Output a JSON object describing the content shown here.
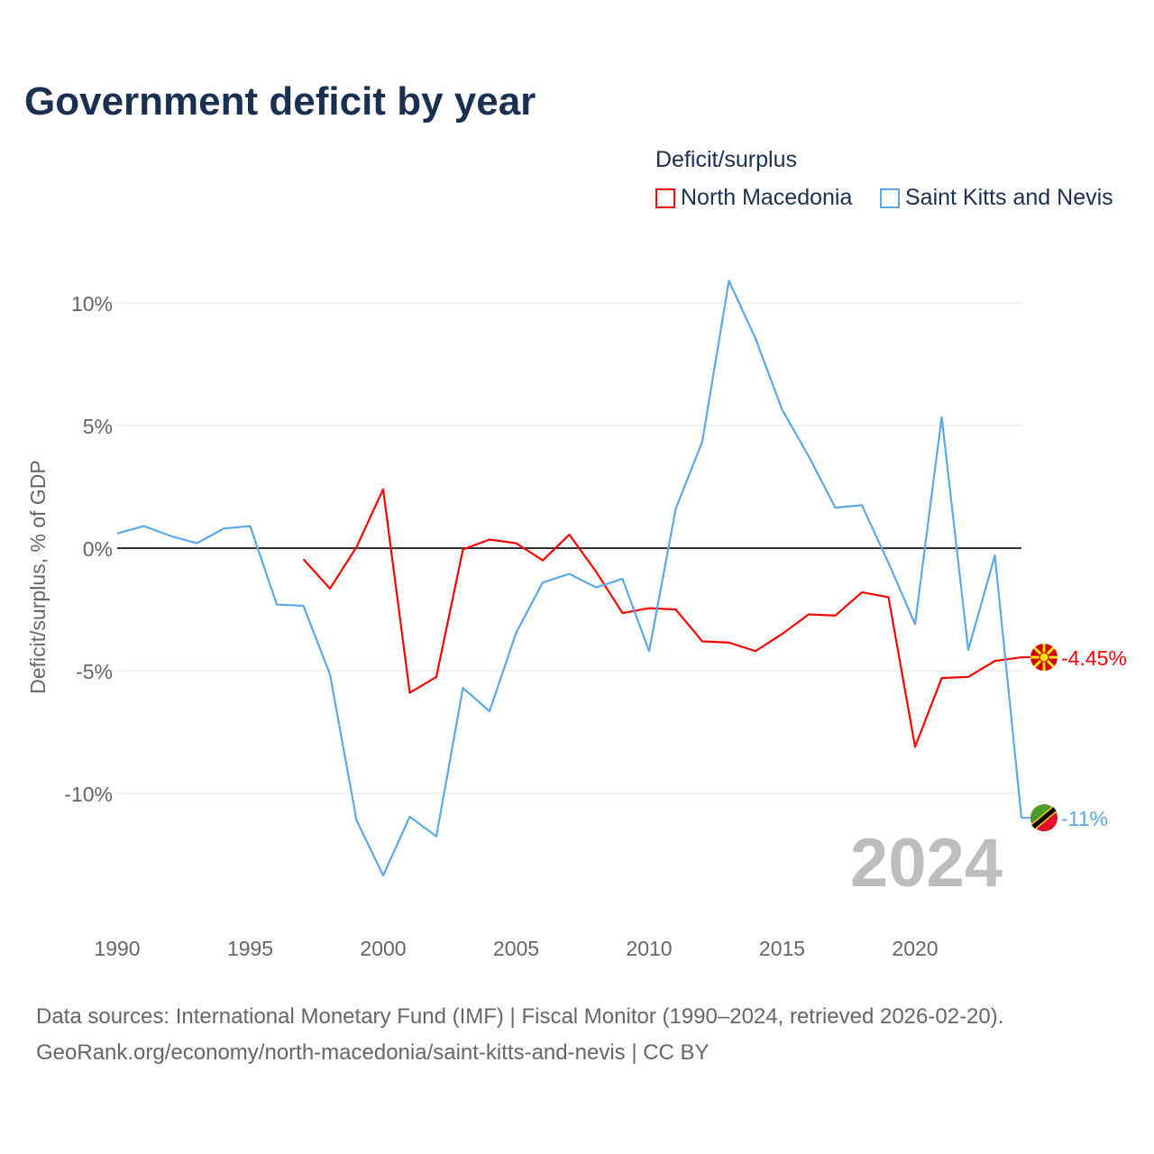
{
  "title": "Government deficit by year",
  "legend_title": "Deficit/surplus",
  "footer": {
    "line1": "Data sources: International Monetary Fund (IMF) | Fiscal Monitor (1990–2024, retrieved 2026-02-20).",
    "line2": "GeoRank.org/economy/north-macedonia/saint-kitts-and-nevis | CC BY"
  },
  "chart_data": {
    "type": "line",
    "title": "Government deficit by year",
    "ylabel": "Deficit/surplus, % of GDP",
    "xlabel": "",
    "xlim": [
      1990,
      2024
    ],
    "ylim": [
      -14.5,
      11.5
    ],
    "xticks": [
      {
        "v": 1990,
        "label": "1990"
      },
      {
        "v": 1995,
        "label": "1995"
      },
      {
        "v": 2000,
        "label": "2000"
      },
      {
        "v": 2005,
        "label": "2005"
      },
      {
        "v": 2010,
        "label": "2010"
      },
      {
        "v": 2015,
        "label": "2015"
      },
      {
        "v": 2020,
        "label": "2020"
      }
    ],
    "yticks": [
      {
        "v": 10,
        "label": "10%"
      },
      {
        "v": 5,
        "label": "5%"
      },
      {
        "v": 0,
        "label": "0%"
      },
      {
        "v": -5,
        "label": "-5%"
      },
      {
        "v": -10,
        "label": "-10%"
      }
    ],
    "grid": true,
    "legend_position": "top-right",
    "year_watermark": "2024",
    "series": [
      {
        "name": "North Macedonia",
        "color": "#ff0000",
        "end_label": "-4.45%",
        "x": [
          1997,
          1998,
          1999,
          2000,
          2001,
          2002,
          2003,
          2004,
          2005,
          2006,
          2007,
          2008,
          2009,
          2010,
          2011,
          2012,
          2013,
          2014,
          2015,
          2016,
          2017,
          2018,
          2019,
          2020,
          2021,
          2022,
          2023,
          2024
        ],
        "values": [
          -0.45,
          -1.65,
          0.05,
          2.4,
          -5.9,
          -5.25,
          -0.05,
          0.35,
          0.2,
          -0.5,
          0.55,
          -0.95,
          -2.65,
          -2.45,
          -2.5,
          -3.8,
          -3.85,
          -4.2,
          -3.5,
          -2.7,
          -2.75,
          -1.8,
          -2.0,
          -8.1,
          -5.3,
          -5.25,
          -4.6,
          -4.45
        ]
      },
      {
        "name": "Saint Kitts and Nevis",
        "color": "#5ba8ea",
        "end_label": "-11%",
        "x": [
          1990,
          1991,
          1992,
          1993,
          1994,
          1995,
          1996,
          1997,
          1998,
          1999,
          2000,
          2001,
          2002,
          2003,
          2004,
          2005,
          2006,
          2007,
          2008,
          2009,
          2010,
          2011,
          2012,
          2013,
          2014,
          2015,
          2016,
          2017,
          2018,
          2019,
          2020,
          2021,
          2022,
          2023,
          2024
        ],
        "values": [
          0.6,
          0.9,
          0.5,
          0.2,
          0.8,
          0.9,
          -2.3,
          -2.35,
          -5.15,
          -11.1,
          -13.35,
          -10.95,
          -11.75,
          -5.7,
          -6.65,
          -3.45,
          -1.4,
          -1.05,
          -1.6,
          -1.25,
          -4.2,
          1.6,
          4.35,
          10.9,
          8.55,
          5.65,
          3.75,
          1.65,
          1.75,
          -0.6,
          -3.1,
          5.35,
          -4.15,
          -0.3,
          -11.0
        ]
      }
    ]
  }
}
